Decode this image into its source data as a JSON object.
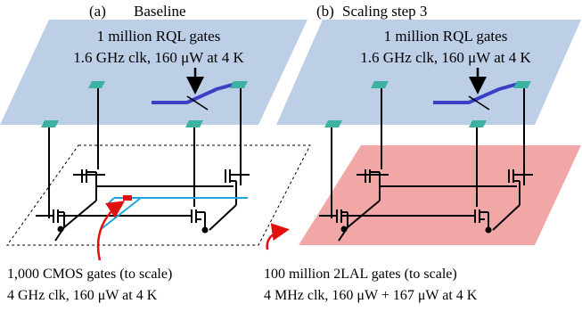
{
  "panel_a": {
    "label": "(a)",
    "title": "Baseline",
    "top_line1": "1 million RQL gates",
    "top_line2": "1.6 GHz clk, 160 μW at 4 K",
    "caption_line1": "1,000 CMOS gates (to scale)",
    "caption_line2": "4 GHz clk, 160 μW at 4 K"
  },
  "panel_b": {
    "label": "(b)",
    "title": "Scaling step 3",
    "top_line1": "1 million RQL gates",
    "top_line2": "1.6 GHz clk, 160 μW at 4 K",
    "caption_line1": "100 million 2LAL gates (to scale)",
    "caption_line2": "4 MHz clk, 160 μW + 167 μW at 4 K"
  },
  "colors": {
    "rql_plane": "#b9cbe6",
    "cmos_plane": "none",
    "lal_plane": "#f2a7a7",
    "pad": "#3bb3a0",
    "rql_line": "#3a3fc4",
    "cmos_wire": "#1ea7d8",
    "arrow": "#e01010"
  }
}
